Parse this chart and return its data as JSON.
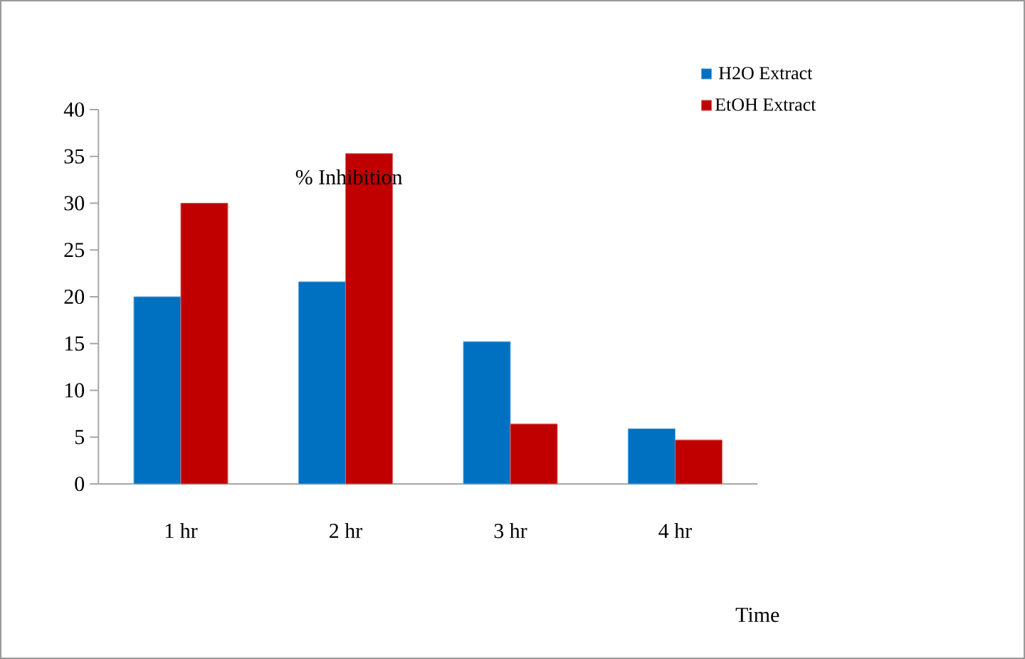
{
  "chart_data": {
    "type": "bar",
    "xlabel": "Time",
    "ylabel": "%    Inhibition",
    "categories": [
      "1 hr",
      "2 hr",
      "3 hr",
      "4 hr"
    ],
    "series": [
      {
        "name": "H2O Extract",
        "color": "#0070c0",
        "values": [
          20,
          21.6,
          15.2,
          5.9
        ]
      },
      {
        "name": "EtOH Extract",
        "color": "#c00000",
        "values": [
          30,
          35.3,
          6.4,
          4.7
        ]
      }
    ],
    "ylim": [
      0,
      40
    ],
    "yticks": [
      0,
      5,
      10,
      15,
      20,
      25,
      30,
      35,
      40
    ],
    "grid": false,
    "legend": "top right"
  }
}
